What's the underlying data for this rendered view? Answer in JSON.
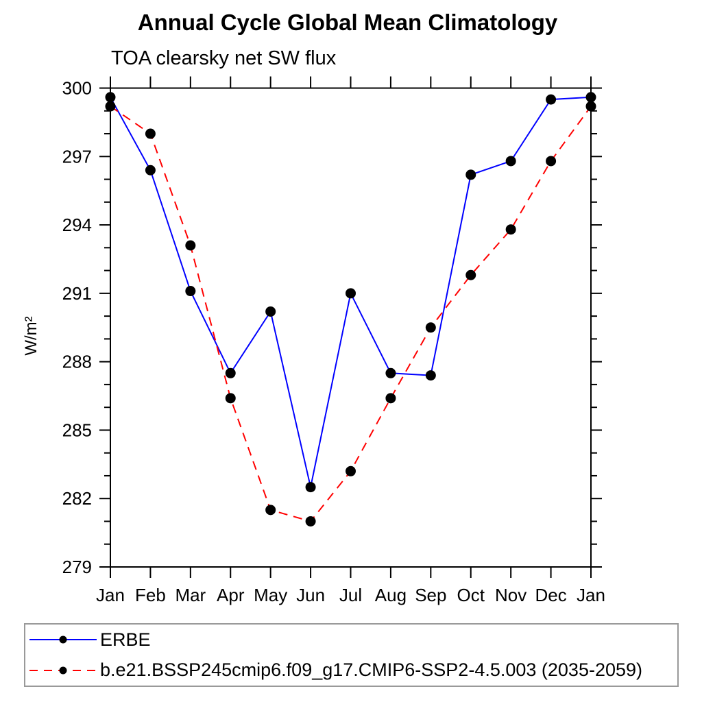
{
  "chart_data": {
    "type": "line",
    "title": "Annual Cycle Global Mean Climatology",
    "subtitle": "TOA clearsky net SW flux",
    "ylabel": "W/m²",
    "x_tick_labels": [
      "Jan",
      "Feb",
      "Mar",
      "Apr",
      "May",
      "Jun",
      "Jul",
      "Aug",
      "Sep",
      "Oct",
      "Nov",
      "Dec",
      "Jan"
    ],
    "ylim": [
      279,
      300
    ],
    "y_major_step": 3,
    "y_minor_step": 1,
    "grid": false,
    "legend_position": "bottom",
    "axis_color": "#000000",
    "marker_color": "#000000",
    "series": [
      {
        "name": "ERBE",
        "color": "#0000ff",
        "style": "solid",
        "marker": "circle",
        "marker_color": "#000000",
        "values": [
          299.6,
          296.4,
          291.1,
          287.5,
          290.2,
          282.5,
          291.0,
          287.5,
          287.4,
          296.2,
          296.8,
          299.5,
          299.6
        ]
      },
      {
        "name": "b.e21.BSSP245cmip6.f09_g17.CMIP6-SSP2-4.5.003 (2035-2059)",
        "color": "#ff0000",
        "style": "dashed",
        "marker": "circle",
        "marker_color": "#000000",
        "values": [
          299.2,
          298.0,
          293.1,
          286.4,
          281.5,
          281.0,
          283.2,
          286.4,
          289.5,
          291.8,
          293.8,
          296.8,
          299.2
        ]
      }
    ]
  }
}
